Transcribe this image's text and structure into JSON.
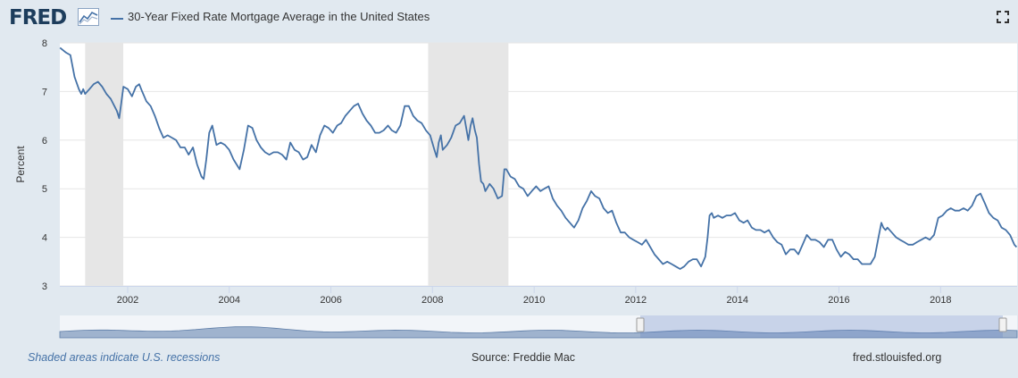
{
  "header": {
    "logo_text": "FRED",
    "title": "30-Year Fixed Rate Mortgage Average in the United States"
  },
  "footer": {
    "recession_note": "Shaded areas indicate U.S. recessions",
    "source": "Source: Freddie Mac",
    "site": "fred.stlouisfed.org"
  },
  "colors": {
    "series": "#4572a7",
    "recession": "#e6e6e6",
    "page_background": "#e1e9f0",
    "navigator": "#9fb3ce"
  },
  "icons": {
    "logo": "fred-chart-icon",
    "fullscreen": "fullscreen-icon"
  },
  "chart_data": {
    "type": "line",
    "title": "30-Year Fixed Rate Mortgage Average in the United States",
    "xlabel": "",
    "ylabel": "Percent",
    "xlim": [
      "2000-08-31",
      "2019-07-05"
    ],
    "ylim": [
      3,
      8
    ],
    "x_ticks": [
      "2002",
      "2004",
      "2006",
      "2008",
      "2010",
      "2012",
      "2014",
      "2016",
      "2018"
    ],
    "y_ticks": [
      "3",
      "4",
      "5",
      "6",
      "7",
      "8"
    ],
    "grid": true,
    "legend_placement": "top-left",
    "recessions": [
      {
        "start": "2001-03-01",
        "end": "2001-11-30"
      },
      {
        "start": "2007-12-01",
        "end": "2009-06-30"
      }
    ],
    "series": [
      {
        "name": "30-Year Fixed Rate Mortgage Average in the United States",
        "x": [
          "2000-09-01",
          "2000-10-15",
          "2000-11-15",
          "2000-12-15",
          "2001-01-15",
          "2001-02-01",
          "2001-02-15",
          "2001-03-01",
          "2001-04-01",
          "2001-05-01",
          "2001-06-01",
          "2001-07-01",
          "2001-08-01",
          "2001-09-01",
          "2001-10-15",
          "2001-11-01",
          "2001-11-15",
          "2001-12-01",
          "2002-01-01",
          "2002-02-01",
          "2002-03-01",
          "2002-03-25",
          "2002-04-15",
          "2002-05-15",
          "2002-06-15",
          "2002-07-15",
          "2002-08-15",
          "2002-09-15",
          "2002-10-15",
          "2002-11-15",
          "2002-12-15",
          "2003-01-15",
          "2003-02-15",
          "2003-03-15",
          "2003-04-15",
          "2003-05-15",
          "2003-06-15",
          "2003-07-01",
          "2003-07-20",
          "2003-08-10",
          "2003-09-01",
          "2003-10-01",
          "2003-11-01",
          "2003-12-01",
          "2004-01-01",
          "2004-02-01",
          "2004-03-15",
          "2004-04-15",
          "2004-05-15",
          "2004-06-15",
          "2004-07-15",
          "2004-08-15",
          "2004-09-15",
          "2004-10-15",
          "2004-11-15",
          "2004-12-15",
          "2005-01-15",
          "2005-02-15",
          "2005-03-15",
          "2005-04-15",
          "2005-05-15",
          "2005-06-15",
          "2005-07-15",
          "2005-08-15",
          "2005-09-15",
          "2005-10-15",
          "2005-11-15",
          "2005-12-15",
          "2006-01-15",
          "2006-02-15",
          "2006-03-15",
          "2006-04-15",
          "2006-05-15",
          "2006-06-15",
          "2006-07-15",
          "2006-08-15",
          "2006-09-15",
          "2006-10-15",
          "2006-11-15",
          "2006-12-15",
          "2007-01-15",
          "2007-02-15",
          "2007-03-15",
          "2007-04-15",
          "2007-05-15",
          "2007-06-15",
          "2007-07-15",
          "2007-08-15",
          "2007-09-15",
          "2007-10-15",
          "2007-11-15",
          "2007-12-15",
          "2008-01-15",
          "2008-02-01",
          "2008-02-15",
          "2008-03-01",
          "2008-03-15",
          "2008-04-15",
          "2008-05-15",
          "2008-06-15",
          "2008-07-15",
          "2008-08-15",
          "2008-09-15",
          "2008-10-01",
          "2008-10-15",
          "2008-11-01",
          "2008-11-15",
          "2008-12-01",
          "2008-12-15",
          "2009-01-01",
          "2009-01-15",
          "2009-02-15",
          "2009-03-15",
          "2009-04-15",
          "2009-05-15",
          "2009-06-01",
          "2009-06-15",
          "2009-07-15",
          "2009-08-15",
          "2009-09-15",
          "2009-10-15",
          "2009-11-15",
          "2009-12-15",
          "2010-01-15",
          "2010-02-15",
          "2010-03-15",
          "2010-04-15",
          "2010-05-15",
          "2010-06-15",
          "2010-07-15",
          "2010-08-15",
          "2010-09-15",
          "2010-10-15",
          "2010-11-15",
          "2010-12-15",
          "2011-01-15",
          "2011-02-15",
          "2011-03-15",
          "2011-04-15",
          "2011-05-15",
          "2011-06-15",
          "2011-07-15",
          "2011-08-15",
          "2011-09-15",
          "2011-10-15",
          "2011-11-15",
          "2011-12-15",
          "2012-01-15",
          "2012-02-15",
          "2012-03-15",
          "2012-04-15",
          "2012-05-15",
          "2012-06-15",
          "2012-07-15",
          "2012-08-15",
          "2012-09-15",
          "2012-10-15",
          "2012-11-15",
          "2012-12-15",
          "2013-01-15",
          "2013-02-15",
          "2013-03-15",
          "2013-04-15",
          "2013-05-15",
          "2013-06-01",
          "2013-06-15",
          "2013-07-01",
          "2013-07-15",
          "2013-08-15",
          "2013-09-15",
          "2013-10-15",
          "2013-11-15",
          "2013-12-15",
          "2014-01-15",
          "2014-02-15",
          "2014-03-15",
          "2014-04-15",
          "2014-05-15",
          "2014-06-15",
          "2014-07-15",
          "2014-08-15",
          "2014-09-15",
          "2014-10-15",
          "2014-11-15",
          "2014-12-15",
          "2015-01-15",
          "2015-02-15",
          "2015-03-15",
          "2015-04-15",
          "2015-05-15",
          "2015-06-15",
          "2015-07-15",
          "2015-08-15",
          "2015-09-15",
          "2015-10-15",
          "2015-11-15",
          "2015-12-15",
          "2016-01-15",
          "2016-02-15",
          "2016-03-15",
          "2016-04-15",
          "2016-05-15",
          "2016-06-15",
          "2016-07-15",
          "2016-08-15",
          "2016-09-15",
          "2016-10-15",
          "2016-11-01",
          "2016-11-15",
          "2016-12-01",
          "2016-12-15",
          "2017-01-15",
          "2017-02-15",
          "2017-03-15",
          "2017-04-15",
          "2017-05-15",
          "2017-06-15",
          "2017-07-15",
          "2017-08-15",
          "2017-09-15",
          "2017-10-15",
          "2017-11-15",
          "2017-12-15",
          "2018-01-15",
          "2018-02-15",
          "2018-03-15",
          "2018-04-15",
          "2018-05-15",
          "2018-06-15",
          "2018-07-15",
          "2018-08-15",
          "2018-09-15",
          "2018-10-15",
          "2018-11-15",
          "2018-12-15",
          "2019-01-15",
          "2019-02-15",
          "2019-03-15",
          "2019-04-15",
          "2019-05-15",
          "2019-06-15",
          "2019-07-01"
        ],
        "y": [
          7.9,
          7.8,
          7.75,
          7.3,
          7.05,
          6.95,
          7.05,
          6.95,
          7.05,
          7.15,
          7.2,
          7.1,
          6.95,
          6.85,
          6.6,
          6.45,
          6.75,
          7.1,
          7.05,
          6.9,
          7.1,
          7.15,
          7.0,
          6.8,
          6.7,
          6.5,
          6.25,
          6.05,
          6.1,
          6.05,
          6.0,
          5.85,
          5.85,
          5.7,
          5.85,
          5.5,
          5.25,
          5.2,
          5.6,
          6.15,
          6.3,
          5.9,
          5.95,
          5.9,
          5.8,
          5.6,
          5.4,
          5.8,
          6.3,
          6.25,
          6.0,
          5.85,
          5.75,
          5.7,
          5.75,
          5.75,
          5.7,
          5.6,
          5.95,
          5.8,
          5.75,
          5.6,
          5.65,
          5.9,
          5.75,
          6.1,
          6.3,
          6.25,
          6.15,
          6.3,
          6.35,
          6.5,
          6.6,
          6.7,
          6.75,
          6.55,
          6.4,
          6.3,
          6.15,
          6.15,
          6.2,
          6.3,
          6.2,
          6.15,
          6.3,
          6.7,
          6.7,
          6.5,
          6.4,
          6.35,
          6.2,
          6.1,
          5.8,
          5.65,
          5.95,
          6.1,
          5.8,
          5.9,
          6.05,
          6.3,
          6.35,
          6.5,
          6.0,
          6.3,
          6.45,
          6.2,
          6.05,
          5.5,
          5.15,
          5.1,
          4.95,
          5.1,
          5.0,
          4.8,
          4.85,
          5.4,
          5.4,
          5.25,
          5.2,
          5.05,
          5.0,
          4.85,
          4.95,
          5.05,
          4.95,
          5.0,
          5.05,
          4.8,
          4.65,
          4.55,
          4.4,
          4.3,
          4.2,
          4.35,
          4.6,
          4.75,
          4.95,
          4.85,
          4.8,
          4.6,
          4.5,
          4.55,
          4.3,
          4.1,
          4.1,
          4.0,
          3.95,
          3.9,
          3.85,
          3.95,
          3.8,
          3.65,
          3.55,
          3.45,
          3.5,
          3.45,
          3.4,
          3.35,
          3.4,
          3.5,
          3.55,
          3.55,
          3.4,
          3.6,
          4.0,
          4.45,
          4.5,
          4.4,
          4.45,
          4.4,
          4.45,
          4.45,
          4.5,
          4.35,
          4.3,
          4.35,
          4.2,
          4.15,
          4.15,
          4.1,
          4.15,
          4.0,
          3.9,
          3.85,
          3.65,
          3.75,
          3.75,
          3.65,
          3.85,
          4.05,
          3.95,
          3.95,
          3.9,
          3.8,
          3.95,
          3.95,
          3.75,
          3.6,
          3.7,
          3.65,
          3.55,
          3.55,
          3.45,
          3.45,
          3.45,
          3.6,
          4.05,
          4.3,
          4.2,
          4.15,
          4.2,
          4.1,
          4.0,
          3.95,
          3.9,
          3.85,
          3.85,
          3.9,
          3.95,
          4.0,
          3.95,
          4.05,
          4.4,
          4.45,
          4.55,
          4.6,
          4.55,
          4.55,
          4.6,
          4.55,
          4.65,
          4.85,
          4.9,
          4.7,
          4.5,
          4.4,
          4.35,
          4.2,
          4.15,
          4.05,
          3.85,
          3.8
        ]
      }
    ]
  }
}
